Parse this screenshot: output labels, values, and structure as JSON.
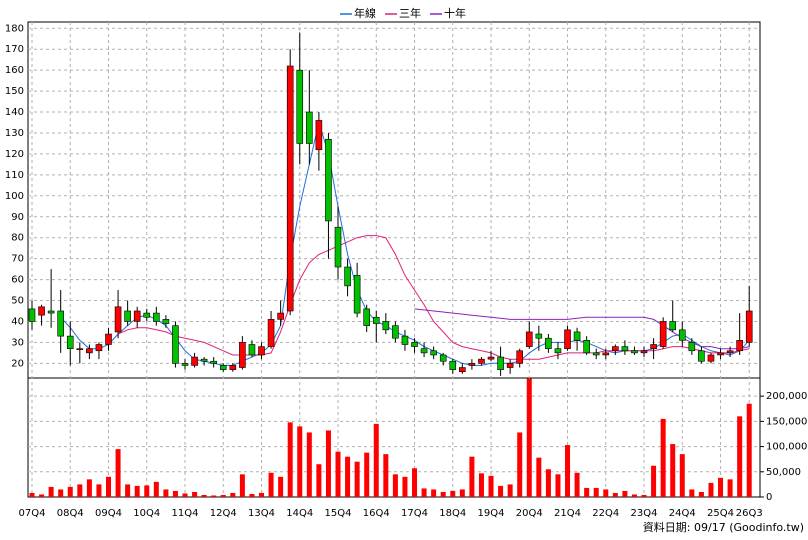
{
  "chart_data": {
    "type": "candlestick",
    "categories": [
      "07Q4",
      null,
      null,
      null,
      "08Q4",
      null,
      null,
      null,
      "09Q4",
      null,
      null,
      null,
      "10Q4",
      null,
      null,
      null,
      "11Q4",
      null,
      null,
      null,
      "12Q4",
      null,
      null,
      null,
      "13Q4",
      null,
      null,
      null,
      "14Q4",
      null,
      null,
      null,
      "15Q4",
      null,
      null,
      null,
      "16Q4",
      null,
      null,
      null,
      "17Q4",
      null,
      null,
      null,
      "18Q4",
      null,
      null,
      null,
      "19Q4",
      null,
      null,
      null,
      "20Q4",
      null,
      null,
      null,
      "21Q4",
      null,
      null,
      null,
      "22Q4",
      null,
      null,
      null,
      "23Q4",
      null,
      null,
      null,
      "24Q4",
      null,
      null,
      null,
      "25Q4",
      null,
      null,
      "26Q3"
    ],
    "open": [
      46,
      43,
      45,
      45,
      33,
      27,
      25,
      26,
      29,
      35,
      45,
      40,
      44,
      44,
      41,
      38,
      20,
      19,
      22,
      21,
      19,
      17,
      18,
      29,
      24,
      28,
      41,
      45,
      160,
      140,
      122,
      127,
      85,
      66,
      62,
      46,
      42,
      40,
      38,
      33,
      30,
      27,
      26,
      24,
      21,
      16,
      19,
      20,
      22,
      23,
      18,
      20,
      28,
      34,
      32,
      27,
      27,
      35,
      31,
      25,
      24,
      26,
      28,
      26,
      25,
      27,
      28,
      40,
      36,
      30,
      26,
      21,
      24,
      25,
      26,
      30
    ],
    "high": [
      50,
      48,
      65,
      55,
      40,
      30,
      29,
      30,
      37,
      55,
      50,
      47,
      46,
      47,
      43,
      40,
      22,
      25,
      23,
      23,
      20,
      20,
      33,
      31,
      30,
      45,
      50,
      170,
      178,
      160,
      140,
      130,
      95,
      70,
      68,
      48,
      45,
      44,
      40,
      36,
      32,
      30,
      28,
      25,
      22,
      20,
      22,
      23,
      26,
      28,
      22,
      27,
      40,
      38,
      34,
      30,
      38,
      37,
      33,
      27,
      27,
      29,
      31,
      28,
      28,
      32,
      42,
      50,
      40,
      32,
      28,
      25,
      27,
      28,
      44,
      57
    ],
    "low": [
      36,
      38,
      37,
      25,
      19,
      20,
      22,
      22,
      26,
      32,
      38,
      37,
      40,
      38,
      37,
      18,
      17,
      18,
      19,
      18,
      16,
      16,
      17,
      23,
      22,
      27,
      38,
      43,
      115,
      115,
      112,
      70,
      60,
      52,
      42,
      35,
      30,
      34,
      30,
      26,
      25,
      23,
      22,
      19,
      15,
      15,
      17,
      19,
      21,
      14,
      15,
      18,
      27,
      26,
      25,
      22,
      26,
      26,
      24,
      22,
      22,
      24,
      24,
      24,
      23,
      22,
      27,
      35,
      28,
      24,
      20,
      20,
      22,
      23,
      24,
      28
    ],
    "close": [
      40,
      47,
      44,
      33,
      27,
      27,
      27,
      29,
      34,
      47,
      40,
      45,
      42,
      40,
      39,
      20,
      19,
      23,
      21,
      20,
      17,
      19,
      30,
      24,
      28,
      41,
      44,
      162,
      125,
      125,
      136,
      88,
      66,
      57,
      44,
      38,
      39,
      36,
      32,
      29,
      28,
      25,
      24,
      21,
      17,
      18,
      20,
      22,
      23,
      17,
      20,
      26,
      35,
      32,
      27,
      25,
      36,
      31,
      25,
      24,
      25,
      28,
      26,
      25,
      26,
      29,
      40,
      36,
      31,
      26,
      21,
      24,
      25,
      26,
      31,
      45
    ],
    "up_color": "#ff0000",
    "down_color": "#00c000",
    "series": [
      {
        "name": "年線",
        "color": "#1e6fd9",
        "values": [
          null,
          null,
          null,
          42,
          37,
          31,
          27,
          27,
          29,
          34,
          38,
          42,
          43,
          41,
          38,
          32,
          26,
          22,
          21,
          20,
          19,
          19,
          21,
          23,
          25,
          29,
          38,
          70,
          95,
          115,
          135,
          120,
          95,
          72,
          55,
          45,
          40,
          38,
          35,
          33,
          31,
          28,
          26,
          24,
          22,
          20,
          19,
          19,
          20,
          20,
          20,
          21,
          25,
          28,
          30,
          30,
          30,
          31,
          30,
          28,
          26,
          25,
          26,
          26,
          26,
          27,
          30,
          33,
          34,
          31,
          28,
          26,
          25,
          24,
          26,
          31
        ]
      },
      {
        "name": "三年",
        "color": "#e0207a",
        "values": [
          null,
          null,
          null,
          null,
          null,
          null,
          null,
          null,
          null,
          34,
          36,
          37,
          37,
          36,
          35,
          33,
          32,
          31,
          30,
          28,
          26,
          24,
          24,
          24,
          24,
          25,
          35,
          48,
          60,
          68,
          72,
          74,
          76,
          78,
          80,
          81,
          81,
          80,
          72,
          62,
          55,
          48,
          40,
          35,
          30,
          28,
          27,
          26,
          25,
          23,
          22,
          22,
          22,
          22,
          23,
          24,
          25,
          25,
          25,
          25,
          26,
          26,
          26,
          26,
          26,
          26,
          27,
          28,
          28,
          27,
          26,
          25,
          25,
          25,
          26,
          27
        ]
      },
      {
        "name": "十年",
        "color": "#9020c0",
        "values": [
          null,
          null,
          null,
          null,
          null,
          null,
          null,
          null,
          null,
          null,
          null,
          null,
          null,
          null,
          null,
          null,
          null,
          null,
          null,
          null,
          null,
          null,
          null,
          null,
          null,
          null,
          null,
          null,
          null,
          null,
          null,
          null,
          null,
          null,
          null,
          null,
          null,
          null,
          null,
          null,
          46,
          45.5,
          45,
          44.5,
          44,
          43.5,
          43,
          42.5,
          42,
          41.5,
          41,
          41,
          41,
          41,
          41,
          41,
          41,
          41.5,
          42,
          42,
          42,
          42,
          42,
          42,
          42,
          41,
          38,
          35,
          32,
          30,
          28,
          28,
          27,
          27,
          27,
          28
        ]
      }
    ],
    "ylim": [
      13,
      183
    ],
    "yticks": [
      20,
      30,
      40,
      50,
      60,
      70,
      80,
      90,
      100,
      110,
      120,
      130,
      140,
      150,
      160,
      170,
      180
    ],
    "volume": {
      "color": "#ff0000",
      "values": [
        8000,
        5000,
        20000,
        15000,
        20000,
        25000,
        35000,
        25000,
        40000,
        95000,
        25000,
        22000,
        23000,
        30000,
        15000,
        12000,
        7000,
        10000,
        4000,
        3000,
        4000,
        8000,
        45000,
        6000,
        8000,
        48000,
        40000,
        148000,
        140000,
        128000,
        65000,
        132000,
        90000,
        80000,
        70000,
        88000,
        145000,
        85000,
        45000,
        40000,
        57000,
        17000,
        15000,
        10000,
        12000,
        15000,
        80000,
        47000,
        42000,
        22000,
        25000,
        128000,
        235000,
        78000,
        55000,
        45000,
        103000,
        48000,
        18000,
        18000,
        15000,
        8000,
        12000,
        5000,
        4000,
        62000,
        155000,
        105000,
        85000,
        15000,
        10000,
        28000,
        38000,
        35000,
        160000,
        185000
      ],
      "ylim": [
        0,
        236000
      ],
      "yticks": [
        0,
        {
          "value": 50000,
          "label": "50,000"
        },
        {
          "value": 100000,
          "label": "100,000"
        },
        {
          "value": 150000,
          "label": "150,000"
        },
        {
          "value": 200000,
          "label": "200,000"
        }
      ]
    },
    "grid": true,
    "footer": "資料日期: 09/17 (Goodinfo.tw)"
  }
}
